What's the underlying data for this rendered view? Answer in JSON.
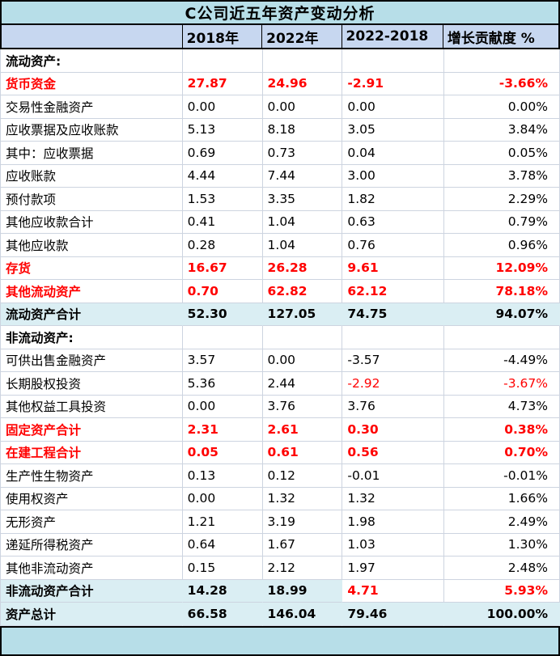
{
  "table": {
    "title": "C公司近五年资产变动分析",
    "columns": [
      "",
      "2018年",
      "2022年",
      "2022-2018",
      "增长贡献度 %"
    ],
    "rows": [
      {
        "type": "section",
        "label": "流动资产:",
        "values": [
          "",
          "",
          "",
          ""
        ]
      },
      {
        "type": "red",
        "label": "货币资金",
        "values": [
          "27.87",
          "24.96",
          "-2.91",
          "-3.66%"
        ]
      },
      {
        "type": "normal",
        "label": "交易性金融资产",
        "values": [
          "0.00",
          "0.00",
          "0.00",
          "0.00%"
        ]
      },
      {
        "type": "normal",
        "label": "应收票据及应收账款",
        "values": [
          "5.13",
          "8.18",
          "3.05",
          "3.84%"
        ]
      },
      {
        "type": "normal",
        "label": "其中：应收票据",
        "values": [
          "0.69",
          "0.73",
          "0.04",
          "0.05%"
        ]
      },
      {
        "type": "normal",
        "label": "应收账款",
        "values": [
          "4.44",
          "7.44",
          "3.00",
          "3.78%"
        ]
      },
      {
        "type": "normal",
        "label": "预付款项",
        "values": [
          "1.53",
          "3.35",
          "1.82",
          "2.29%"
        ]
      },
      {
        "type": "normal",
        "label": "其他应收款合计",
        "values": [
          "0.41",
          "1.04",
          "0.63",
          "0.79%"
        ]
      },
      {
        "type": "normal",
        "label": "其他应收款",
        "values": [
          "0.28",
          "1.04",
          "0.76",
          "0.96%"
        ]
      },
      {
        "type": "red",
        "label": "存货",
        "values": [
          "16.67",
          "26.28",
          "9.61",
          "12.09%"
        ]
      },
      {
        "type": "red",
        "label": "其他流动资产",
        "values": [
          "0.70",
          "62.82",
          "62.12",
          "78.18%"
        ]
      },
      {
        "type": "total",
        "label": "流动资产合计",
        "values": [
          "52.30",
          "127.05",
          "74.75",
          "94.07%"
        ]
      },
      {
        "type": "section",
        "label": "非流动资产:",
        "values": [
          "",
          "",
          "",
          ""
        ]
      },
      {
        "type": "normal",
        "label": "可供出售金融资产",
        "values": [
          "3.57",
          "0.00",
          "-3.57",
          "-4.49%"
        ]
      },
      {
        "type": "normal",
        "label": "长期股权投资",
        "values": [
          "5.36",
          "2.44",
          "-2.92",
          "-3.67%"
        ],
        "red_values": [
          2,
          3
        ]
      },
      {
        "type": "normal",
        "label": "其他权益工具投资",
        "values": [
          "0.00",
          "3.76",
          "3.76",
          "4.73%"
        ]
      },
      {
        "type": "red",
        "label": "固定资产合计",
        "values": [
          "2.31",
          "2.61",
          "0.30",
          "0.38%"
        ]
      },
      {
        "type": "red",
        "label": "在建工程合计",
        "values": [
          "0.05",
          "0.61",
          "0.56",
          "0.70%"
        ]
      },
      {
        "type": "normal",
        "label": "生产性生物资产",
        "values": [
          "0.13",
          "0.12",
          "-0.01",
          "-0.01%"
        ]
      },
      {
        "type": "normal",
        "label": "使用权资产",
        "values": [
          "0.00",
          "1.32",
          "1.32",
          "1.66%"
        ]
      },
      {
        "type": "normal",
        "label": "无形资产",
        "values": [
          "1.21",
          "3.19",
          "1.98",
          "2.49%"
        ]
      },
      {
        "type": "normal",
        "label": "递延所得税资产",
        "values": [
          "0.64",
          "1.67",
          "1.03",
          "1.30%"
        ]
      },
      {
        "type": "normal",
        "label": "其他非流动资产",
        "values": [
          "0.15",
          "2.12",
          "1.97",
          "2.48%"
        ]
      },
      {
        "type": "total",
        "label": "非流动资产合计",
        "values": [
          "14.28",
          "18.99",
          "4.71",
          "5.93%"
        ],
        "red_values": [
          2,
          3
        ],
        "white_values": [
          2,
          3
        ]
      },
      {
        "type": "total",
        "label": "资产总计",
        "values": [
          "66.58",
          "146.04",
          "79.46",
          "100.00%"
        ]
      }
    ]
  },
  "colors": {
    "title_bg": "#B7DEE8",
    "header_bg": "#C7D7F0",
    "total_bg": "#DAEEF3",
    "footer_bg": "#B7DEE8",
    "red": "#FF0000",
    "grid": "#CDD4E0",
    "black": "#000000"
  }
}
